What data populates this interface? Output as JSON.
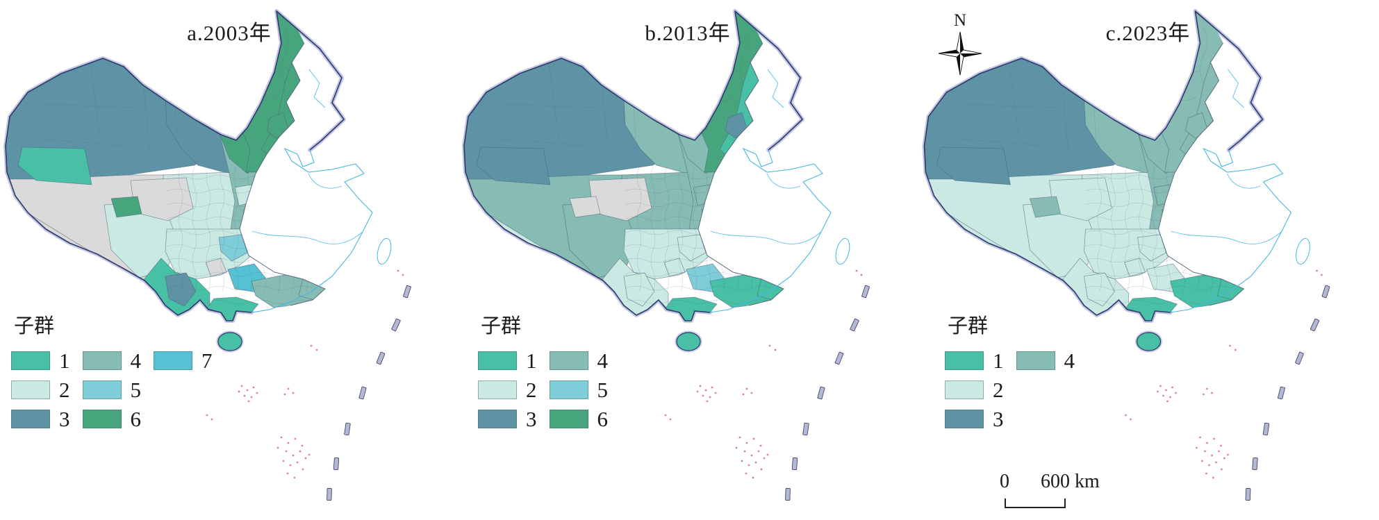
{
  "figure": {
    "legend_title": "子群",
    "north_label": "N",
    "scale_bar": {
      "start_label": "0",
      "end_label": "600 km"
    },
    "cluster_colors": {
      "1": "#47c0a5",
      "2": "#cbe9e3",
      "3": "#5e93a6",
      "4": "#86bcb3",
      "5": "#7fcdd8",
      "6": "#47a57e",
      "7": "#55c1d2"
    },
    "no_data_color": "#dadada",
    "map_colors": {
      "border": "#2b3a68",
      "glow": "#bcbfe2",
      "coast": "#44b8e2",
      "inner_border": "#4f6078",
      "islets": "#e07ea8",
      "dash_fill": "#b4b8d4",
      "dash_edge": "#30365a",
      "land": "#ffffff"
    },
    "panels": [
      {
        "id": "a",
        "title": "a.2003年",
        "legend_clusters": [
          "1",
          "2",
          "3",
          "4",
          "5",
          "6",
          "7"
        ]
      },
      {
        "id": "b",
        "title": "b.2013年",
        "legend_clusters": [
          "1",
          "2",
          "3",
          "4",
          "5",
          "6"
        ]
      },
      {
        "id": "c",
        "title": "c.2023年",
        "legend_clusters": [
          "1",
          "2",
          "3",
          "4"
        ]
      }
    ],
    "region_assignments": {
      "tibet": {
        "a": "nd",
        "b": "4",
        "c": "2"
      },
      "tibet_east": {
        "a": "2",
        "b": "4",
        "c": "2"
      },
      "tibet_south_fringe": {
        "a": "nd",
        "b": "2",
        "c": "2"
      },
      "xinjiang": {
        "a": "3",
        "b": "3",
        "c": "3"
      },
      "xinjiang_sw": {
        "a": "1",
        "b": "3",
        "c": "3"
      },
      "qinghai": {
        "a": "2",
        "b": "4",
        "c": "2"
      },
      "qinghai_gray": {
        "a": "nd",
        "b": "nd",
        "c": "2"
      },
      "qaidam_small": {
        "a": "6",
        "b": "nd",
        "c": "4"
      },
      "hexi": {
        "a": "3",
        "b": "4",
        "c": "4"
      },
      "north_center": {
        "a": "4",
        "b": "4",
        "c": "4"
      },
      "center_east_strip": {
        "a": "4",
        "b": "6",
        "c": "4"
      },
      "im_west": {
        "a": "6",
        "b": "4",
        "c": "4"
      },
      "ne_block": {
        "a": "6",
        "b": "6",
        "c": "4"
      },
      "ne_east_strip": {
        "a": "6",
        "b": "1",
        "c": "4"
      },
      "ne_steel_patch": {
        "a": "6",
        "b": "3",
        "c": "4"
      },
      "center_blob_mint": {
        "a": "2",
        "b": "4",
        "c": "4"
      },
      "center_blob_teal": {
        "a": "1",
        "b": "4",
        "c": "4"
      },
      "center_blob_gray": {
        "a": "nd",
        "b": "4",
        "c": "4"
      },
      "sichuan": {
        "a": "2",
        "b": "2",
        "c": "2"
      },
      "sichuan_basin_patch": {
        "a": "5",
        "b": "2",
        "c": "2"
      },
      "south_gray_blob": {
        "a": "nd",
        "b": "2",
        "c": "2"
      },
      "yunnan": {
        "a": "1",
        "b": "2",
        "c": "2"
      },
      "yunnan_steel": {
        "a": "3",
        "b": "2",
        "c": "2"
      },
      "guizhou_patch": {
        "a": "7",
        "b": "5",
        "c": "2"
      },
      "se_teal": {
        "a": "4",
        "b": "1",
        "c": "1"
      },
      "hunan_bump": {
        "a": "4",
        "b": "1",
        "c": "1"
      },
      "guangxi_coast": {
        "a": "1",
        "b": "1",
        "c": "1"
      },
      "hainan": {
        "a": "1",
        "b": "1",
        "c": "1"
      }
    }
  }
}
